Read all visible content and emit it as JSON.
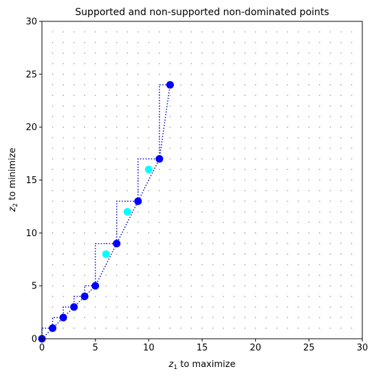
{
  "chart_data": {
    "type": "scatter",
    "title": "Supported and non-supported non-dominated points",
    "xlabel": {
      "var": "z",
      "sub": "1",
      "rest": " to maximize"
    },
    "ylabel": {
      "var": "z",
      "sub": "2",
      "rest": " to minimize"
    },
    "xlim": [
      0,
      30
    ],
    "ylim": [
      0,
      30
    ],
    "xticks": [
      "0",
      "5",
      "10",
      "15",
      "20",
      "25",
      "30"
    ],
    "yticks": [
      "0",
      "5",
      "10",
      "15",
      "20",
      "25",
      "30"
    ],
    "grid": "integer dot lattice (light grey)",
    "series": [
      {
        "role": "supported",
        "color": "#0000ff",
        "points": [
          [
            0,
            0
          ],
          [
            1,
            1
          ],
          [
            2,
            2
          ],
          [
            3,
            3
          ],
          [
            4,
            4
          ],
          [
            5,
            5
          ],
          [
            7,
            9
          ],
          [
            9,
            13
          ],
          [
            11,
            17
          ],
          [
            12,
            24
          ]
        ]
      },
      {
        "role": "non-supported",
        "color": "#00ffff",
        "points": [
          [
            6,
            8
          ],
          [
            8,
            12
          ],
          [
            10,
            16
          ]
        ]
      }
    ],
    "lines": [
      {
        "style": "dotted",
        "color": "#0000cc",
        "desc": "upper staircase",
        "points": [
          [
            0,
            0
          ],
          [
            0,
            1
          ],
          [
            1,
            1
          ],
          [
            1,
            2
          ],
          [
            2,
            2
          ],
          [
            2,
            3
          ],
          [
            3,
            3
          ],
          [
            3,
            4
          ],
          [
            4,
            4
          ],
          [
            4,
            5
          ],
          [
            5,
            5
          ],
          [
            5,
            9
          ],
          [
            7,
            9
          ],
          [
            7,
            13
          ],
          [
            9,
            13
          ],
          [
            9,
            17
          ],
          [
            11,
            17
          ],
          [
            11,
            24
          ],
          [
            12,
            24
          ]
        ]
      },
      {
        "style": "dotted",
        "color": "#0000cc",
        "desc": "convex hull connecting supported points",
        "points": [
          [
            0,
            0
          ],
          [
            1,
            1
          ],
          [
            2,
            2
          ],
          [
            3,
            3
          ],
          [
            4,
            4
          ],
          [
            5,
            5
          ],
          [
            7,
            9
          ],
          [
            9,
            13
          ],
          [
            11,
            17
          ],
          [
            12,
            24
          ]
        ]
      }
    ]
  }
}
